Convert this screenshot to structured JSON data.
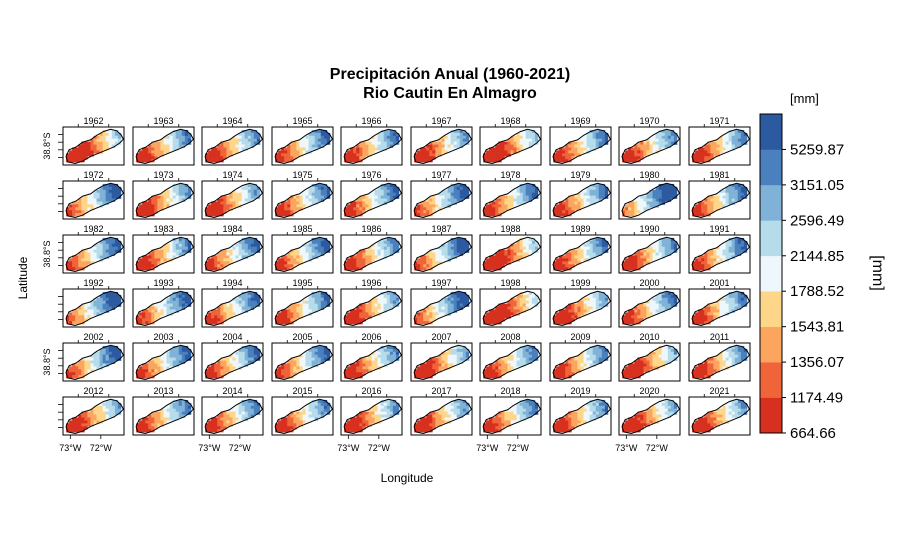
{
  "chart_data": {
    "type": "heatmap",
    "title_line1": "Precipitación Anual (1960-2021)",
    "title_line2": "Rio Cautin En Almagro",
    "xlabel": "Longitude",
    "ylabel": "Latitude",
    "x_ticks": [
      "73°W",
      "72°W"
    ],
    "y_tick": "38.8°S",
    "legend": {
      "unit_top": "[mm]",
      "unit_side": "[mm]",
      "breaks": [
        "664.66",
        "1174.49",
        "1356.07",
        "1543.81",
        "1788.52",
        "2144.85",
        "2596.49",
        "3151.05",
        "5259.87"
      ],
      "colors": [
        "#d7301f",
        "#f0643a",
        "#fca55f",
        "#fed68a",
        "#eef7fb",
        "#b6dcec",
        "#7fb2d6",
        "#4a80bd",
        "#2c5aa0"
      ]
    },
    "panels": [
      "1962",
      "1963",
      "1964",
      "1965",
      "1966",
      "1967",
      "1968",
      "1969",
      "1970",
      "1971",
      "1972",
      "1973",
      "1974",
      "1975",
      "1976",
      "1977",
      "1978",
      "1979",
      "1980",
      "1981",
      "1982",
      "1983",
      "1984",
      "1985",
      "1986",
      "1987",
      "1988",
      "1989",
      "1990",
      "1991",
      "1992",
      "1993",
      "1994",
      "1995",
      "1996",
      "1997",
      "1998",
      "1999",
      "2000",
      "2001",
      "2002",
      "2003",
      "2004",
      "2005",
      "2006",
      "2007",
      "2008",
      "2009",
      "2010",
      "2011",
      "2012",
      "2013",
      "2014",
      "2015",
      "2016",
      "2017",
      "2018",
      "2019",
      "2020",
      "2021"
    ],
    "panel_wetness": [
      0.12,
      0.38,
      0.35,
      0.45,
      0.4,
      0.3,
      0.15,
      0.4,
      0.35,
      0.35,
      0.55,
      0.3,
      0.28,
      0.42,
      0.45,
      0.55,
      0.42,
      0.4,
      0.7,
      0.45,
      0.5,
      0.35,
      0.48,
      0.48,
      0.35,
      0.55,
      0.1,
      0.4,
      0.35,
      0.45,
      0.62,
      0.52,
      0.45,
      0.42,
      0.28,
      0.58,
      0.05,
      0.25,
      0.42,
      0.4,
      0.55,
      0.48,
      0.45,
      0.48,
      0.35,
      0.25,
      0.4,
      0.38,
      0.18,
      0.35,
      0.25,
      0.4,
      0.38,
      0.38,
      0.28,
      0.3,
      0.38,
      0.35,
      0.22,
      0.3
    ]
  }
}
